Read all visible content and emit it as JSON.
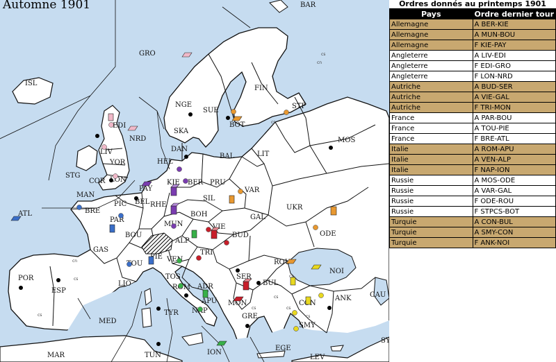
{
  "map": {
    "season": "Automne 1901",
    "colors": {
      "water": "#c6dcf0",
      "land": "#ffffff",
      "border": "#111111",
      "switzerland": "hatched"
    },
    "province_labels": [
      "BAR",
      "GRO",
      "ISL",
      "NGE",
      "SUE",
      "FIN",
      "STP",
      "MOS",
      "EDI",
      "NRD",
      "SKA",
      "BOT",
      "LIV",
      "HEL",
      "DAN",
      "BAL",
      "LIT",
      "STG",
      "YOR",
      "KIE",
      "BER",
      "PRU",
      "COR",
      "LON",
      "PAY",
      "BEL",
      "VAR",
      "MAN",
      "PIC",
      "RHE",
      "SIL",
      "ATL",
      "BRE",
      "PAR",
      "UKR",
      "BOH",
      "GAL",
      "MUN",
      "VIE",
      "ODE",
      "BOU",
      "ALP",
      "BUD",
      "GAS",
      "TRI",
      "TOU",
      "PIE",
      "VEN",
      "ROU",
      "NOI",
      "POR",
      "ESP",
      "LIO",
      "TOS",
      "SER",
      "BUL",
      "ROM",
      "ADR",
      "ANK",
      "CON",
      "APU",
      "MON",
      "NAP",
      "TYR",
      "CAU",
      "MED",
      "GRE",
      "SMY",
      "SYR",
      "MAR",
      "TUN",
      "ION",
      "EGE",
      "LEV"
    ],
    "small_labels": [
      "cn",
      "cs",
      "cs",
      "cs",
      "cs",
      "cs",
      "cs",
      "cs",
      "cn",
      "cs",
      "cs"
    ]
  },
  "orders_panel": {
    "caption": "Ordres donnés au printemps 1901",
    "columns": [
      "Pays",
      "Ordre dernier tour"
    ],
    "rows": [
      {
        "country": "Allemagne",
        "order": "A BER-KIE",
        "highlight": true
      },
      {
        "country": "Allemagne",
        "order": "A MUN-BOU",
        "highlight": true
      },
      {
        "country": "Allemagne",
        "order": "F KIE-PAY",
        "highlight": true
      },
      {
        "country": "Angleterre",
        "order": "A LIV-EDI",
        "highlight": false
      },
      {
        "country": "Angleterre",
        "order": "F EDI-GRO",
        "highlight": false
      },
      {
        "country": "Angleterre",
        "order": "F LON-NRD",
        "highlight": false
      },
      {
        "country": "Autriche",
        "order": "A BUD-SER",
        "highlight": true
      },
      {
        "country": "Autriche",
        "order": "A VIE-GAL",
        "highlight": true
      },
      {
        "country": "Autriche",
        "order": "F TRI-MON",
        "highlight": true
      },
      {
        "country": "France",
        "order": "A PAR-BOU",
        "highlight": false
      },
      {
        "country": "France",
        "order": "A TOU-PIE",
        "highlight": false
      },
      {
        "country": "France",
        "order": "F BRE-ATL",
        "highlight": false
      },
      {
        "country": "Italie",
        "order": "A ROM-APU",
        "highlight": true
      },
      {
        "country": "Italie",
        "order": "A VEN-ALP",
        "highlight": true
      },
      {
        "country": "Italie",
        "order": "F NAP-ION",
        "highlight": true
      },
      {
        "country": "Russie",
        "order": "A MOS-ODE",
        "highlight": false
      },
      {
        "country": "Russie",
        "order": "A VAR-GAL",
        "highlight": false
      },
      {
        "country": "Russie",
        "order": "F ODE-ROU",
        "highlight": false
      },
      {
        "country": "Russie",
        "order": "F STPCS-BOT",
        "highlight": false
      },
      {
        "country": "Turquie",
        "order": "A CON-BUL",
        "highlight": true
      },
      {
        "country": "Turquie",
        "order": "A SMY-CON",
        "highlight": true
      },
      {
        "country": "Turquie",
        "order": "F ANK-NOI",
        "highlight": true
      }
    ],
    "highlight_color": "#c8a870",
    "header_color": "#000000"
  },
  "powers": {
    "Angleterre": "#f0b8c8",
    "Allemagne": "#7a3cb0",
    "Autriche": "#c81e2a",
    "France": "#3a6ec8",
    "Italie": "#38b048",
    "Russie": "#e89830",
    "Turquie": "#e8d820"
  }
}
